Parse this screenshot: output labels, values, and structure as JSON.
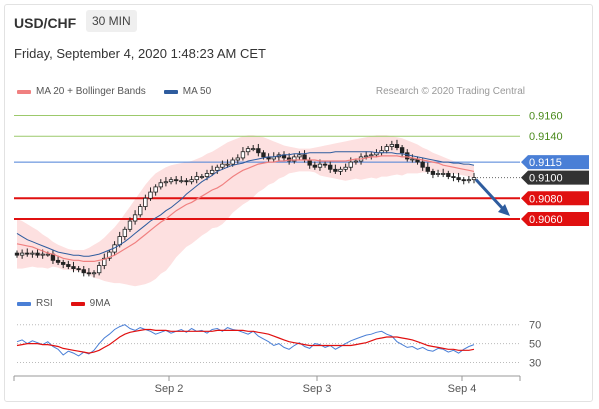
{
  "header": {
    "symbol": "USD/CHF",
    "timeframe": "30 MIN",
    "datetime": "Friday, September 4, 2020 1:48:23 AM CET",
    "credit": "Research © 2020 Trading Central"
  },
  "colors": {
    "ma20": "#f08080",
    "ma50": "#2e5c9e",
    "bollinger_fill": "#fde0e0",
    "resistance": "#9cc96b",
    "pivot": "#4a7fd6",
    "support": "#e01010",
    "candle_up": "#ffffff",
    "candle_down": "#222222",
    "rsi": "#4a7fd6",
    "rsi_ma": "#e01010",
    "arrow": "#2e5c9e"
  },
  "chart_data": [
    {
      "type": "line",
      "title": "",
      "legend": [
        {
          "name": "MA 20 + Bollinger Bands",
          "color": "#f08080"
        },
        {
          "name": "MA 50",
          "color": "#2e5c9e"
        }
      ],
      "x_ticks": [
        "Sep 2",
        "Sep 3",
        "Sep 4"
      ],
      "y_ticks": [
        0.906,
        0.908,
        0.91,
        0.9115,
        0.914,
        0.916
      ],
      "ylim": [
        0.9001,
        0.9175
      ],
      "levels": [
        {
          "label": "0.9160",
          "value": 0.916,
          "role": "resistance"
        },
        {
          "label": "0.9140",
          "value": 0.914,
          "role": "resistance"
        },
        {
          "label": "0.9115",
          "value": 0.9115,
          "role": "pivot"
        },
        {
          "label": "0.9100",
          "value": 0.91,
          "role": "last"
        },
        {
          "label": "0.9080",
          "value": 0.908,
          "role": "support"
        },
        {
          "label": "0.9060",
          "value": 0.906,
          "role": "support"
        }
      ],
      "last_price": 0.91,
      "forecast_target": 0.906,
      "close": [
        0.9025,
        0.9027,
        0.9026,
        0.9027,
        0.9025,
        0.9026,
        0.9026,
        0.902,
        0.9018,
        0.9016,
        0.9014,
        0.9012,
        0.9011,
        0.9008,
        0.9007,
        0.9008,
        0.9015,
        0.9022,
        0.9028,
        0.9035,
        0.9043,
        0.905,
        0.9058,
        0.9064,
        0.9072,
        0.908,
        0.9086,
        0.9091,
        0.9095,
        0.9096,
        0.9098,
        0.9097,
        0.9097,
        0.9096,
        0.9098,
        0.9101,
        0.9101,
        0.9104,
        0.9107,
        0.911,
        0.9113,
        0.9113,
        0.9117,
        0.9119,
        0.9125,
        0.9128,
        0.9128,
        0.9124,
        0.912,
        0.9118,
        0.912,
        0.9122,
        0.9119,
        0.9116,
        0.912,
        0.9122,
        0.9117,
        0.9112,
        0.911,
        0.9113,
        0.9112,
        0.9108,
        0.9106,
        0.9108,
        0.911,
        0.9115,
        0.9116,
        0.912,
        0.9121,
        0.9122,
        0.9124,
        0.9126,
        0.913,
        0.9132,
        0.9129,
        0.9124,
        0.9118,
        0.9118,
        0.9115,
        0.911,
        0.9106,
        0.9103,
        0.9104,
        0.9104,
        0.9101,
        0.91,
        0.9098,
        0.9097,
        0.9098,
        0.91
      ],
      "ma20": [
        0.9036,
        0.9035,
        0.9034,
        0.9033,
        0.9031,
        0.9029,
        0.9027,
        0.9026,
        0.9024,
        0.9022,
        0.9021,
        0.902,
        0.902,
        0.9019,
        0.9019,
        0.9019,
        0.902,
        0.9021,
        0.9023,
        0.9025,
        0.9028,
        0.9031,
        0.9034,
        0.9037,
        0.9041,
        0.9045,
        0.9049,
        0.9053,
        0.9057,
        0.906,
        0.9064,
        0.9068,
        0.9071,
        0.9074,
        0.9076,
        0.9079,
        0.9082,
        0.9085,
        0.9088,
        0.909,
        0.9093,
        0.9097,
        0.9101,
        0.9104,
        0.9107,
        0.9109,
        0.9111,
        0.9113,
        0.9114,
        0.9115,
        0.9115,
        0.9116,
        0.9116,
        0.9117,
        0.9117,
        0.9117,
        0.9117,
        0.9117,
        0.9117,
        0.9116,
        0.9116,
        0.9116,
        0.9116,
        0.9116,
        0.9116,
        0.9117,
        0.9118,
        0.9118,
        0.9119,
        0.912,
        0.912,
        0.9121,
        0.9121,
        0.9121,
        0.9121,
        0.912,
        0.912,
        0.9119,
        0.9118,
        0.9117,
        0.9116,
        0.9115,
        0.9114,
        0.9112,
        0.9111,
        0.911,
        0.9109,
        0.9108,
        0.9107,
        0.9106
      ],
      "ma50": [
        0.9046,
        0.9043,
        0.904,
        0.9038,
        0.9036,
        0.9034,
        0.9032,
        0.903,
        0.9028,
        0.9027,
        0.9026,
        0.9025,
        0.9025,
        0.9024,
        0.9024,
        0.9025,
        0.9026,
        0.9028,
        0.903,
        0.9032,
        0.9035,
        0.9038,
        0.9042,
        0.9046,
        0.905,
        0.9054,
        0.9058,
        0.9061,
        0.9064,
        0.9068,
        0.9071,
        0.9075,
        0.9079,
        0.9084,
        0.9088,
        0.9092,
        0.9096,
        0.9099,
        0.9102,
        0.9106,
        0.9108,
        0.911,
        0.9112,
        0.9113,
        0.9114,
        0.9116,
        0.9117,
        0.9118,
        0.9119,
        0.912,
        0.912,
        0.9121,
        0.9122,
        0.9122,
        0.9123,
        0.9123,
        0.9123,
        0.9124,
        0.9124,
        0.9124,
        0.9124,
        0.9124,
        0.9125,
        0.9125,
        0.9125,
        0.9125,
        0.9125,
        0.9125,
        0.9125,
        0.9125,
        0.9124,
        0.9124,
        0.9124,
        0.9124,
        0.9123,
        0.9123,
        0.9122,
        0.9121,
        0.912,
        0.9119,
        0.9118,
        0.9117,
        0.9116,
        0.9115,
        0.9115,
        0.9114,
        0.9114,
        0.9113,
        0.9113,
        0.9112
      ],
      "bb_upper": [
        0.906,
        0.9058,
        0.9055,
        0.9052,
        0.9049,
        0.9045,
        0.9042,
        0.9038,
        0.9035,
        0.9033,
        0.9031,
        0.903,
        0.903,
        0.903,
        0.9032,
        0.9035,
        0.9038,
        0.9042,
        0.9047,
        0.9052,
        0.9058,
        0.9065,
        0.9072,
        0.9079,
        0.9086,
        0.9093,
        0.9099,
        0.9104,
        0.9107,
        0.911,
        0.9112,
        0.9113,
        0.9114,
        0.9115,
        0.9116,
        0.9118,
        0.912,
        0.9123,
        0.9125,
        0.9128,
        0.9131,
        0.9134,
        0.9136,
        0.9138,
        0.914,
        0.9141,
        0.9141,
        0.914,
        0.9139,
        0.9137,
        0.9135,
        0.9133,
        0.9131,
        0.913,
        0.9129,
        0.9128,
        0.9128,
        0.9128,
        0.9129,
        0.913,
        0.9131,
        0.9132,
        0.9133,
        0.9134,
        0.9135,
        0.9136,
        0.9137,
        0.9138,
        0.9139,
        0.914,
        0.9141,
        0.9141,
        0.9141,
        0.914,
        0.9139,
        0.9138,
        0.9136,
        0.9134,
        0.9132,
        0.9129,
        0.9127,
        0.9124,
        0.9122,
        0.912,
        0.9118,
        0.9116,
        0.9115,
        0.9114,
        0.9113,
        0.9112
      ],
      "bb_lower": [
        0.9012,
        0.9012,
        0.9013,
        0.9014,
        0.9013,
        0.9013,
        0.9012,
        0.9014,
        0.9013,
        0.9011,
        0.9011,
        0.901,
        0.901,
        0.9008,
        0.9006,
        0.9003,
        0.9002,
        0.9,
        0.8999,
        0.8998,
        0.8998,
        0.8997,
        0.8996,
        0.8995,
        0.8996,
        0.8997,
        0.8999,
        0.9002,
        0.9007,
        0.901,
        0.9016,
        0.9023,
        0.9028,
        0.9033,
        0.9036,
        0.904,
        0.9044,
        0.9047,
        0.9051,
        0.9052,
        0.9055,
        0.906,
        0.9066,
        0.907,
        0.9074,
        0.9077,
        0.9081,
        0.9086,
        0.9089,
        0.9093,
        0.9095,
        0.9099,
        0.9101,
        0.9104,
        0.9105,
        0.9106,
        0.9106,
        0.9106,
        0.9105,
        0.9102,
        0.9101,
        0.91,
        0.9099,
        0.9098,
        0.9097,
        0.9098,
        0.9099,
        0.9098,
        0.9099,
        0.91,
        0.9099,
        0.9101,
        0.9101,
        0.9102,
        0.9103,
        0.9102,
        0.9104,
        0.9104,
        0.9104,
        0.9105,
        0.9105,
        0.9106,
        0.9106,
        0.9104,
        0.9104,
        0.9104,
        0.9103,
        0.9102,
        0.9101,
        0.91
      ]
    },
    {
      "type": "line",
      "title": "",
      "legend": [
        {
          "name": "RSI",
          "color": "#4a7fd6"
        },
        {
          "name": "9MA",
          "color": "#e01010"
        }
      ],
      "y_ticks": [
        70,
        50,
        30
      ],
      "ylim": [
        20,
        75
      ],
      "rsi": [
        52,
        54,
        50,
        53,
        51,
        49,
        52,
        47,
        44,
        38,
        42,
        40,
        37,
        41,
        39,
        43,
        50,
        56,
        60,
        65,
        68,
        70,
        66,
        64,
        67,
        65,
        63,
        60,
        62,
        64,
        61,
        63,
        65,
        62,
        66,
        63,
        64,
        61,
        65,
        66,
        63,
        67,
        65,
        64,
        62,
        60,
        63,
        58,
        55,
        52,
        48,
        50,
        46,
        44,
        48,
        51,
        47,
        45,
        50,
        49,
        46,
        48,
        44,
        47,
        50,
        53,
        55,
        57,
        59,
        60,
        62,
        63,
        60,
        58,
        52,
        49,
        46,
        47,
        44,
        46,
        43,
        42,
        45,
        44,
        41,
        43,
        40,
        44,
        47,
        49
      ],
      "rsi_ma": [
        48,
        49,
        50,
        50,
        50,
        49,
        49,
        48,
        47,
        45,
        44,
        43,
        42,
        41,
        40,
        41,
        43,
        46,
        49,
        53,
        57,
        60,
        62,
        63,
        64,
        65,
        65,
        64,
        64,
        64,
        63,
        63,
        63,
        63,
        63,
        63,
        63,
        63,
        63,
        64,
        64,
        64,
        64,
        64,
        64,
        63,
        63,
        62,
        61,
        60,
        58,
        56,
        54,
        52,
        51,
        50,
        49,
        48,
        48,
        48,
        48,
        48,
        48,
        48,
        48,
        48,
        49,
        50,
        51,
        53,
        55,
        56,
        57,
        57,
        57,
        56,
        55,
        54,
        52,
        50,
        48,
        47,
        46,
        45,
        44,
        44,
        43,
        43,
        43,
        44
      ]
    }
  ]
}
